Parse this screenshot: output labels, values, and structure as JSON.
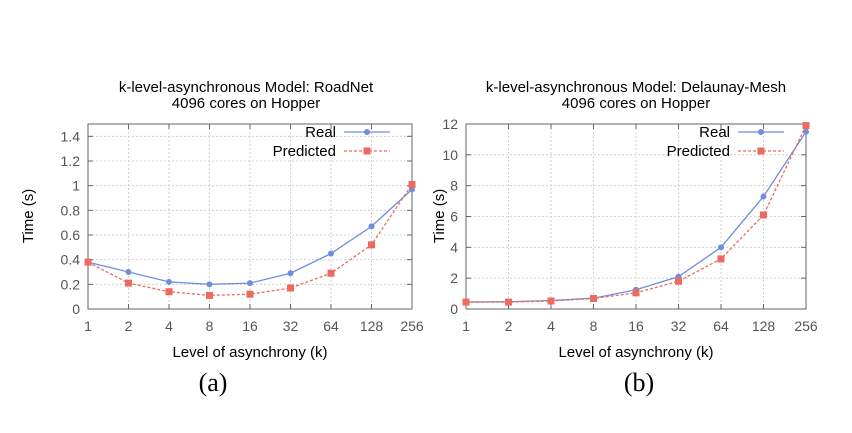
{
  "chart_data": [
    {
      "type": "line",
      "title": "k-level-asynchronous Model: RoadNet",
      "subtitle": "4096 cores on Hopper",
      "xlabel": "Level of asynchrony (k)",
      "ylabel": "Time (s)",
      "x_scale": "log2",
      "categories": [
        "1",
        "2",
        "4",
        "8",
        "16",
        "32",
        "64",
        "128",
        "256"
      ],
      "ylim": [
        0,
        1.5
      ],
      "yticks": [
        "0",
        "0.2",
        "0.4",
        "0.6",
        "0.8",
        "1",
        "1.2",
        "1.4"
      ],
      "grid": true,
      "legend_position": "top-right",
      "series": [
        {
          "name": "Real",
          "color": "#6f8fdc",
          "marker": "circle",
          "values": [
            0.38,
            0.3,
            0.22,
            0.2,
            0.21,
            0.29,
            0.45,
            0.67,
            0.97
          ]
        },
        {
          "name": "Predicted",
          "color": "#ec6a5e",
          "marker": "square",
          "values": [
            0.38,
            0.21,
            0.14,
            0.11,
            0.12,
            0.17,
            0.29,
            0.52,
            1.01
          ]
        }
      ],
      "caption": "(a)"
    },
    {
      "type": "line",
      "title": "k-level-asynchronous Model: Delaunay-Mesh",
      "subtitle": "4096 cores on Hopper",
      "xlabel": "Level of asynchrony (k)",
      "ylabel": "Time (s)",
      "x_scale": "log2",
      "categories": [
        "1",
        "2",
        "4",
        "8",
        "16",
        "32",
        "64",
        "128",
        "256"
      ],
      "ylim": [
        0,
        12
      ],
      "yticks": [
        "0",
        "2",
        "4",
        "6",
        "8",
        "10",
        "12"
      ],
      "grid": true,
      "legend_position": "top-right",
      "series": [
        {
          "name": "Real",
          "color": "#6f8fdc",
          "marker": "circle",
          "values": [
            0.45,
            0.47,
            0.55,
            0.7,
            1.25,
            2.1,
            4.0,
            7.3,
            11.5
          ]
        },
        {
          "name": "Predicted",
          "color": "#ec6a5e",
          "marker": "square",
          "values": [
            0.45,
            0.45,
            0.52,
            0.68,
            1.05,
            1.8,
            3.25,
            6.1,
            11.9
          ]
        }
      ],
      "caption": "(b)"
    }
  ]
}
